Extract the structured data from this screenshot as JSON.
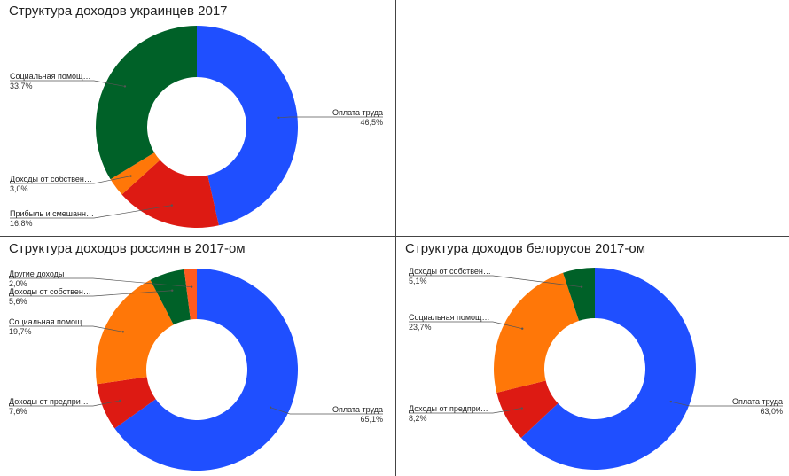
{
  "colors": {
    "blue": "#1f4fff",
    "red": "#dd1a13",
    "orange": "#ff7708",
    "green": "#006128",
    "leader": "#555555"
  },
  "chart_data": [
    {
      "type": "pie",
      "donut": true,
      "title": "Структура доходов  украинцев 2017",
      "slices": [
        {
          "label": "Оплата труда",
          "value": 46.5,
          "value_text": "46,5%",
          "color": "#1f4fff",
          "label_side": "right"
        },
        {
          "label": "Прибыль и смешанн…",
          "value": 16.8,
          "value_text": "16,8%",
          "color": "#dd1a13",
          "label_side": "left"
        },
        {
          "label": "Доходы от собствен…",
          "value": 3.0,
          "value_text": "3,0%",
          "color": "#ff7708",
          "label_side": "left"
        },
        {
          "label": "Социальная помощ…",
          "value": 33.7,
          "value_text": "33,7%",
          "color": "#006128",
          "label_side": "left"
        }
      ]
    },
    {
      "type": "pie",
      "donut": true,
      "title": "Структура доходов россиян в 2017-ом",
      "slices": [
        {
          "label": "Оплата труда",
          "value": 65.1,
          "value_text": "65,1%",
          "color": "#1f4fff",
          "label_side": "right"
        },
        {
          "label": "Доходы от предпри…",
          "value": 7.6,
          "value_text": "7,6%",
          "color": "#dd1a13",
          "label_side": "left"
        },
        {
          "label": "Социальная помощ…",
          "value": 19.7,
          "value_text": "19,7%",
          "color": "#ff7708",
          "label_side": "left"
        },
        {
          "label": "Доходы от собствен…",
          "value": 5.6,
          "value_text": "5,6%",
          "color": "#006128",
          "label_side": "left"
        },
        {
          "label": "Другие доходы",
          "value": 2.0,
          "value_text": "2,0%",
          "color": "#ff5a1f",
          "label_side": "left"
        }
      ]
    },
    {
      "type": "pie",
      "donut": true,
      "title": "Структура доходов белорусов 2017-ом",
      "slices": [
        {
          "label": "Оплата труда",
          "value": 63.0,
          "value_text": "63,0%",
          "color": "#1f4fff",
          "label_side": "right"
        },
        {
          "label": "Доходы от предпри…",
          "value": 8.2,
          "value_text": "8,2%",
          "color": "#dd1a13",
          "label_side": "left"
        },
        {
          "label": "Социальная помощ…",
          "value": 23.7,
          "value_text": "23,7%",
          "color": "#ff7708",
          "label_side": "left"
        },
        {
          "label": "Доходы от собствен…",
          "value": 5.1,
          "value_text": "5,1%",
          "color": "#006128",
          "label_side": "left"
        }
      ]
    }
  ]
}
